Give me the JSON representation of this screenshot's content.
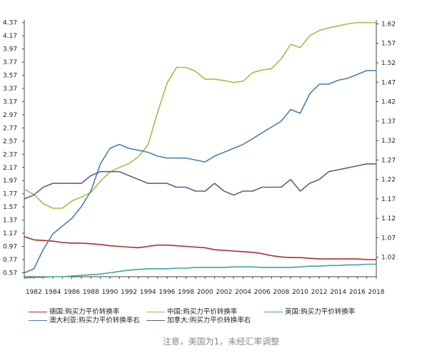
{
  "chart_data": {
    "type": "line",
    "x": [
      1981,
      1982,
      1983,
      1984,
      1985,
      1986,
      1987,
      1988,
      1989,
      1990,
      1991,
      1992,
      1993,
      1994,
      1995,
      1996,
      1997,
      1998,
      1999,
      2000,
      2001,
      2002,
      2003,
      2004,
      2005,
      2006,
      2007,
      2008,
      2009,
      2010,
      2011,
      2012,
      2013,
      2014,
      2015,
      2016,
      2017,
      2018
    ],
    "x_ticks": [
      1982,
      1984,
      1986,
      1988,
      1990,
      1992,
      1994,
      1996,
      1998,
      2000,
      2002,
      2004,
      2006,
      2008,
      2010,
      2012,
      2014,
      2016,
      2018
    ],
    "y_left_ticks": [
      "0.57",
      "0.77",
      "0.97",
      "1.17",
      "1.37",
      "1.57",
      "1.77",
      "1.97",
      "2.17",
      "2.37",
      "2.57",
      "2.77",
      "2.97",
      "3.17",
      "3.37",
      "3.57",
      "3.77",
      "3.97",
      "4.17",
      "4.37"
    ],
    "y_right_ticks": [
      "1.02",
      "1.07",
      "1.12",
      "1.17",
      "1.22",
      "1.27",
      "1.32",
      "1.37",
      "1.42",
      "1.47",
      "1.52",
      "1.57",
      "1.62"
    ],
    "y_left_range": [
      0.51,
      4.41
    ],
    "y_right_range": [
      0.97,
      1.63
    ],
    "series": [
      {
        "name": "德国:购买力平价转换率",
        "axis": "left",
        "color": "#b02a2a",
        "values": [
          1.12,
          1.07,
          1.06,
          1.05,
          1.03,
          1.02,
          1.02,
          1.01,
          1.0,
          0.98,
          0.97,
          0.96,
          0.95,
          0.97,
          0.99,
          0.99,
          0.98,
          0.97,
          0.96,
          0.95,
          0.92,
          0.91,
          0.9,
          0.89,
          0.88,
          0.86,
          0.83,
          0.81,
          0.8,
          0.8,
          0.79,
          0.78,
          0.78,
          0.78,
          0.78,
          0.78,
          0.77,
          0.77
        ]
      },
      {
        "name": "中国:购买力平价转换率",
        "axis": "left",
        "color": "#b5b549",
        "values": [
          1.84,
          1.76,
          1.62,
          1.55,
          1.55,
          1.66,
          1.72,
          1.79,
          1.96,
          2.1,
          2.17,
          2.23,
          2.33,
          2.51,
          3.0,
          3.45,
          3.69,
          3.69,
          3.63,
          3.51,
          3.51,
          3.49,
          3.46,
          3.48,
          3.61,
          3.65,
          3.67,
          3.82,
          4.04,
          3.99,
          4.17,
          4.25,
          4.29,
          4.32,
          4.35,
          4.37,
          4.37,
          4.37
        ]
      },
      {
        "name": "英国:购买力平价转换率",
        "axis": "left",
        "color": "#3ea6a6",
        "values": [
          0.49,
          0.5,
          0.5,
          0.51,
          0.51,
          0.52,
          0.53,
          0.54,
          0.55,
          0.57,
          0.59,
          0.61,
          0.62,
          0.63,
          0.63,
          0.63,
          0.64,
          0.64,
          0.65,
          0.65,
          0.65,
          0.65,
          0.66,
          0.66,
          0.66,
          0.65,
          0.65,
          0.65,
          0.65,
          0.66,
          0.67,
          0.67,
          0.68,
          0.68,
          0.69,
          0.69,
          0.7,
          0.7
        ]
      },
      {
        "name": "澳大利亚:购买力平价转换率右",
        "axis": "right",
        "color": "#4a7eb6",
        "values": [
          0.98,
          0.99,
          1.04,
          1.08,
          1.1,
          1.12,
          1.15,
          1.19,
          1.26,
          1.3,
          1.31,
          1.3,
          1.295,
          1.29,
          1.28,
          1.275,
          1.275,
          1.275,
          1.27,
          1.265,
          1.28,
          1.29,
          1.3,
          1.31,
          1.325,
          1.34,
          1.355,
          1.37,
          1.4,
          1.39,
          1.44,
          1.465,
          1.465,
          1.475,
          1.48,
          1.49,
          1.5,
          1.5
        ]
      },
      {
        "name": "加拿大:购买力平价转换率右",
        "axis": "right",
        "color": "#6b5a88",
        "values": [
          1.17,
          1.18,
          1.2,
          1.21,
          1.21,
          1.21,
          1.21,
          1.23,
          1.24,
          1.24,
          1.24,
          1.23,
          1.22,
          1.21,
          1.21,
          1.21,
          1.2,
          1.2,
          1.19,
          1.19,
          1.21,
          1.19,
          1.18,
          1.19,
          1.19,
          1.2,
          1.2,
          1.2,
          1.22,
          1.19,
          1.21,
          1.22,
          1.24,
          1.245,
          1.25,
          1.255,
          1.26,
          1.26
        ]
      }
    ]
  },
  "note": "注意，美国为1，未经汇率调整"
}
